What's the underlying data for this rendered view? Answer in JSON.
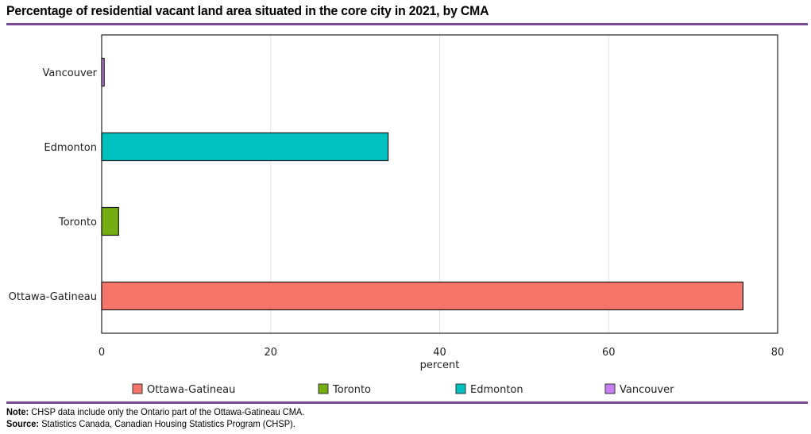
{
  "title": "Percentage of residential vacant land area situated in the core city in 2021, by CMA",
  "notes": {
    "note_label": "Note:",
    "note_text": "CHSP data include only the Ontario part of the Ottawa-Gatineau CMA.",
    "source_label": "Source:",
    "source_text": "Statistics Canada, Canadian Housing Statistics Program (CHSP)."
  },
  "chart_data": {
    "type": "bar",
    "orientation": "horizontal",
    "title": "Percentage of residential vacant land area situated in the core city in 2021, by CMA",
    "xlabel": "percent",
    "ylabel": "",
    "xlim": [
      0,
      80
    ],
    "xticks": [
      0,
      20,
      40,
      60,
      80
    ],
    "grid": true,
    "legend_position": "bottom",
    "categories": [
      "Vancouver",
      "Edmonton",
      "Toronto",
      "Ottawa-Gatineau"
    ],
    "values": [
      0.3,
      33.9,
      2.0,
      75.9
    ],
    "colors": [
      "#c77ef0",
      "#00c0c0",
      "#74ad12",
      "#f5756b"
    ],
    "legend": [
      {
        "name": "Ottawa-Gatineau",
        "color": "#f5756b"
      },
      {
        "name": "Toronto",
        "color": "#74ad12"
      },
      {
        "name": "Edmonton",
        "color": "#00c0c0"
      },
      {
        "name": "Vancouver",
        "color": "#c77ef0"
      }
    ]
  }
}
